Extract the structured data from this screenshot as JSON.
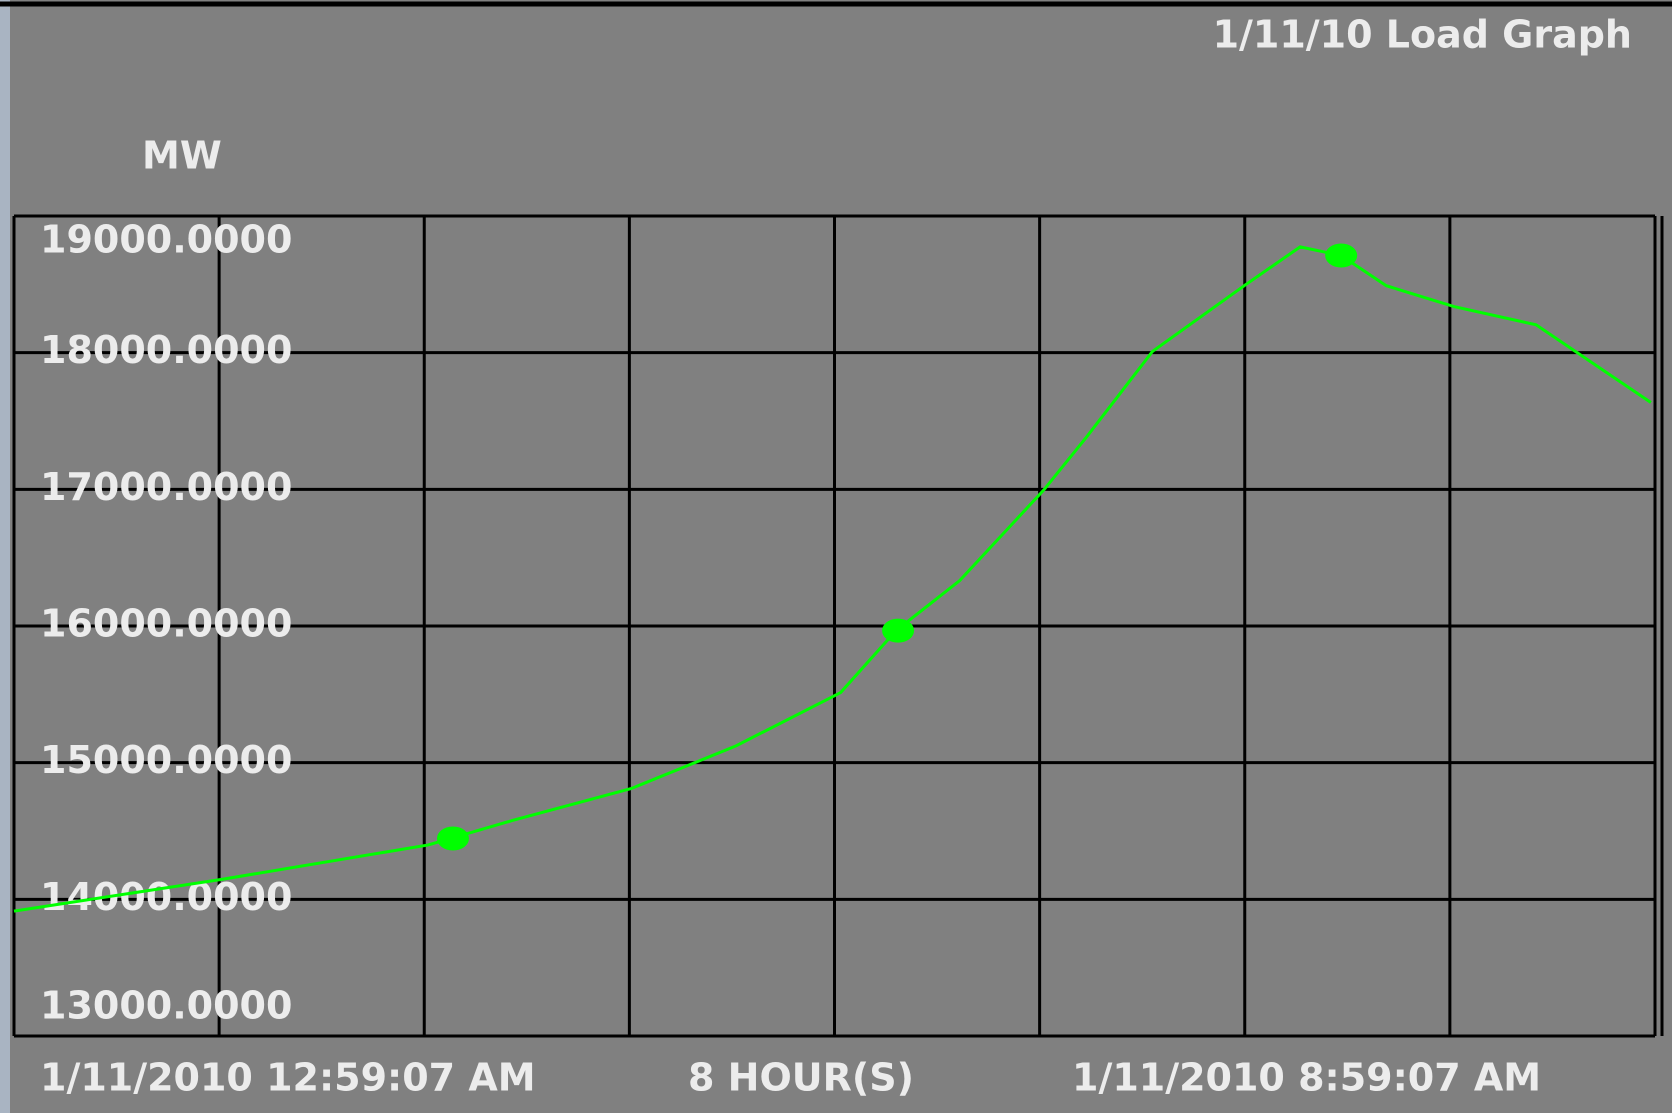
{
  "chart_data": {
    "type": "line",
    "title": "1/11/10 Load Graph",
    "y_label": "MW",
    "x_start_label": "1/11/2010 12:59:07 AM",
    "x_span_label": "8 HOUR(S)",
    "x_end_label": "1/11/2010 8:59:07 AM",
    "x": [
      0,
      1.02,
      2.02,
      2.43,
      3.01,
      3.52,
      4.03,
      4.3,
      4.61,
      5.02,
      5.23,
      5.55,
      6.0,
      6.27,
      6.47,
      6.69,
      7.02,
      7.42,
      7.98
    ],
    "series": [
      {
        "color": "#00ff00",
        "values": [
          13914,
          14148,
          14398,
          14577,
          14811,
          15123,
          15513,
          15966,
          16332,
          16995,
          17385,
          18009,
          18493,
          18774,
          18711,
          18490,
          18337,
          18204,
          17635
        ]
      }
    ],
    "marker_x": [
      2.14,
      4.31,
      6.47
    ],
    "marker_values": [
      14445,
      15966,
      18711
    ],
    "xlim": [
      0,
      8
    ],
    "xticks": [
      0,
      1,
      2,
      3,
      4,
      5,
      6,
      7,
      8
    ],
    "ylim": [
      13000,
      19000
    ],
    "yticks": [
      {
        "value": 13000,
        "label": "13000.0000"
      },
      {
        "value": 14000,
        "label": "14000.0000"
      },
      {
        "value": 15000,
        "label": "15000.0000"
      },
      {
        "value": 16000,
        "label": "16000.0000"
      },
      {
        "value": 17000,
        "label": "17000.0000"
      },
      {
        "value": 18000,
        "label": "18000.0000"
      },
      {
        "value": 19000,
        "label": "19000.0000"
      }
    ],
    "grid": true
  }
}
